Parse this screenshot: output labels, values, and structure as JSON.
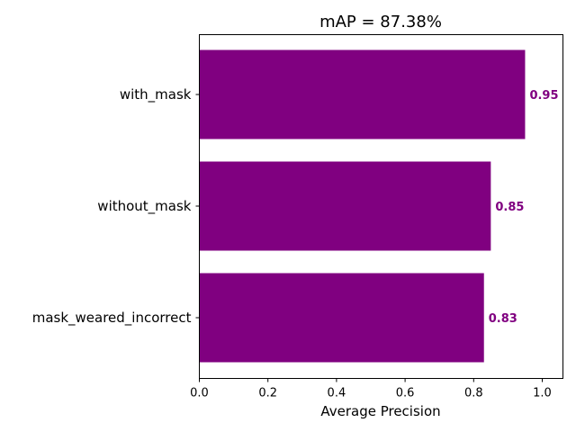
{
  "chart_data": {
    "type": "bar",
    "orientation": "horizontal",
    "title": "mAP = 87.38%",
    "xlabel": "Average Precision",
    "ylabel": "",
    "categories": [
      "with_mask",
      "without_mask",
      "mask_weared_incorrect"
    ],
    "values": [
      0.95,
      0.85,
      0.83
    ],
    "value_labels": [
      "0.95",
      "0.85",
      "0.83"
    ],
    "xlim": [
      0,
      1.06
    ],
    "xticks": [
      0.0,
      0.2,
      0.4,
      0.6,
      0.8,
      1.0
    ],
    "xtick_labels": [
      "0.0",
      "0.2",
      "0.4",
      "0.6",
      "0.8",
      "1.0"
    ],
    "grid": false,
    "bar_color": "#800080",
    "label_color": "#800080"
  }
}
